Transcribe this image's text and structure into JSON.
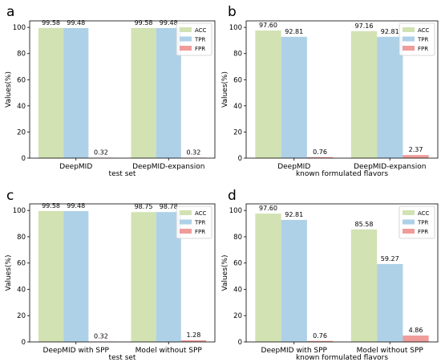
{
  "colors": {
    "ACC": "#d2e2b3",
    "TPR": "#aed1e8",
    "FPR": "#ef9c9a"
  },
  "chart_data": [
    {
      "type": "bar",
      "panel_label": "a",
      "categories": [
        "DeepMID",
        "DeepMID-expansion"
      ],
      "xlabel": "test set",
      "ylabel": "Values(%)",
      "ylim": [
        0,
        105
      ],
      "yticks": [
        0,
        20,
        40,
        60,
        80,
        100
      ],
      "legend_position": "top-right",
      "series": [
        {
          "name": "ACC",
          "values": [
            99.58,
            99.58
          ],
          "labels": [
            "99.58",
            "99.58"
          ]
        },
        {
          "name": "TPR",
          "values": [
            99.48,
            99.48
          ],
          "labels": [
            "99.48",
            "99.48"
          ]
        },
        {
          "name": "FPR",
          "values": [
            0.32,
            0.32
          ],
          "labels": [
            "0.32",
            "0.32"
          ]
        }
      ]
    },
    {
      "type": "bar",
      "panel_label": "b",
      "categories": [
        "DeepMID",
        "DeepMID-expansion"
      ],
      "xlabel": "known formulated flavors",
      "ylabel": "Values(%)",
      "ylim": [
        0,
        105
      ],
      "yticks": [
        0,
        20,
        40,
        60,
        80,
        100
      ],
      "legend_position": "top-right",
      "series": [
        {
          "name": "ACC",
          "values": [
            97.6,
            97.16
          ],
          "labels": [
            "97.60",
            "97.16"
          ]
        },
        {
          "name": "TPR",
          "values": [
            92.81,
            92.81
          ],
          "labels": [
            "92.81",
            "92.81"
          ]
        },
        {
          "name": "FPR",
          "values": [
            0.76,
            2.37
          ],
          "labels": [
            "0.76",
            "2.37"
          ]
        }
      ]
    },
    {
      "type": "bar",
      "panel_label": "c",
      "categories": [
        "DeepMID with SPP",
        "Model without SPP"
      ],
      "xlabel": "test set",
      "ylabel": "Values(%)",
      "ylim": [
        0,
        105
      ],
      "yticks": [
        0,
        20,
        40,
        60,
        80,
        100
      ],
      "legend_position": "top-right",
      "series": [
        {
          "name": "ACC",
          "values": [
            99.58,
            98.75
          ],
          "labels": [
            "99.58",
            "98.75"
          ]
        },
        {
          "name": "TPR",
          "values": [
            99.48,
            98.78
          ],
          "labels": [
            "99.48",
            "98.78"
          ]
        },
        {
          "name": "FPR",
          "values": [
            0.32,
            1.28
          ],
          "labels": [
            "0.32",
            "1.28"
          ]
        }
      ]
    },
    {
      "type": "bar",
      "panel_label": "d",
      "categories": [
        "DeepMID with SPP",
        "Model without SPP"
      ],
      "xlabel": "known formulated flavors",
      "ylabel": "Values(%)",
      "ylim": [
        0,
        105
      ],
      "yticks": [
        0,
        20,
        40,
        60,
        80,
        100
      ],
      "legend_position": "top-right",
      "series": [
        {
          "name": "ACC",
          "values": [
            97.6,
            85.58
          ],
          "labels": [
            "97.60",
            "85.58"
          ]
        },
        {
          "name": "TPR",
          "values": [
            92.81,
            59.27
          ],
          "labels": [
            "92.81",
            "59.27"
          ]
        },
        {
          "name": "FPR",
          "values": [
            0.76,
            4.86
          ],
          "labels": [
            "0.76",
            "4.86"
          ]
        }
      ]
    }
  ]
}
